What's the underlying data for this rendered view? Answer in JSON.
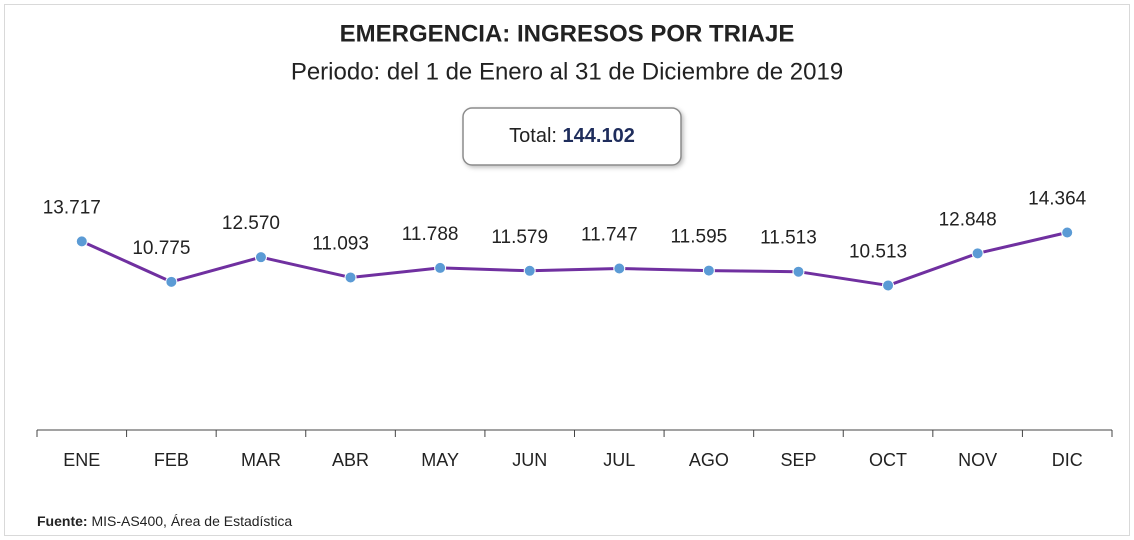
{
  "chart_data": {
    "type": "line",
    "title": "EMERGENCIA: INGRESOS POR TRIAJE",
    "subtitle": "Periodo: del 1 de Enero al 31 de Diciembre de 2019",
    "total": {
      "label": "Total:",
      "value": 144102,
      "value_label": "144.102"
    },
    "categories": [
      "ENE",
      "FEB",
      "MAR",
      "ABR",
      "MAY",
      "JUN",
      "JUL",
      "AGO",
      "SEP",
      "OCT",
      "NOV",
      "DIC"
    ],
    "series": [
      {
        "name": "Ingresos",
        "color": "#7030a0",
        "marker_color": "#5b9bd5",
        "values": [
          13717,
          10775,
          12570,
          11093,
          11788,
          11579,
          11747,
          11595,
          11513,
          10513,
          12848,
          14364
        ],
        "value_labels": [
          "13.717",
          "10.775",
          "12.570",
          "11.093",
          "11.788",
          "11.579",
          "11.747",
          "11.595",
          "11.513",
          "10.513",
          "12.848",
          "14.364"
        ]
      }
    ],
    "ylim": [
      0,
      24000
    ],
    "source": {
      "label": "Fuente:",
      "text": "MIS-AS400, Área de Estadística"
    }
  }
}
